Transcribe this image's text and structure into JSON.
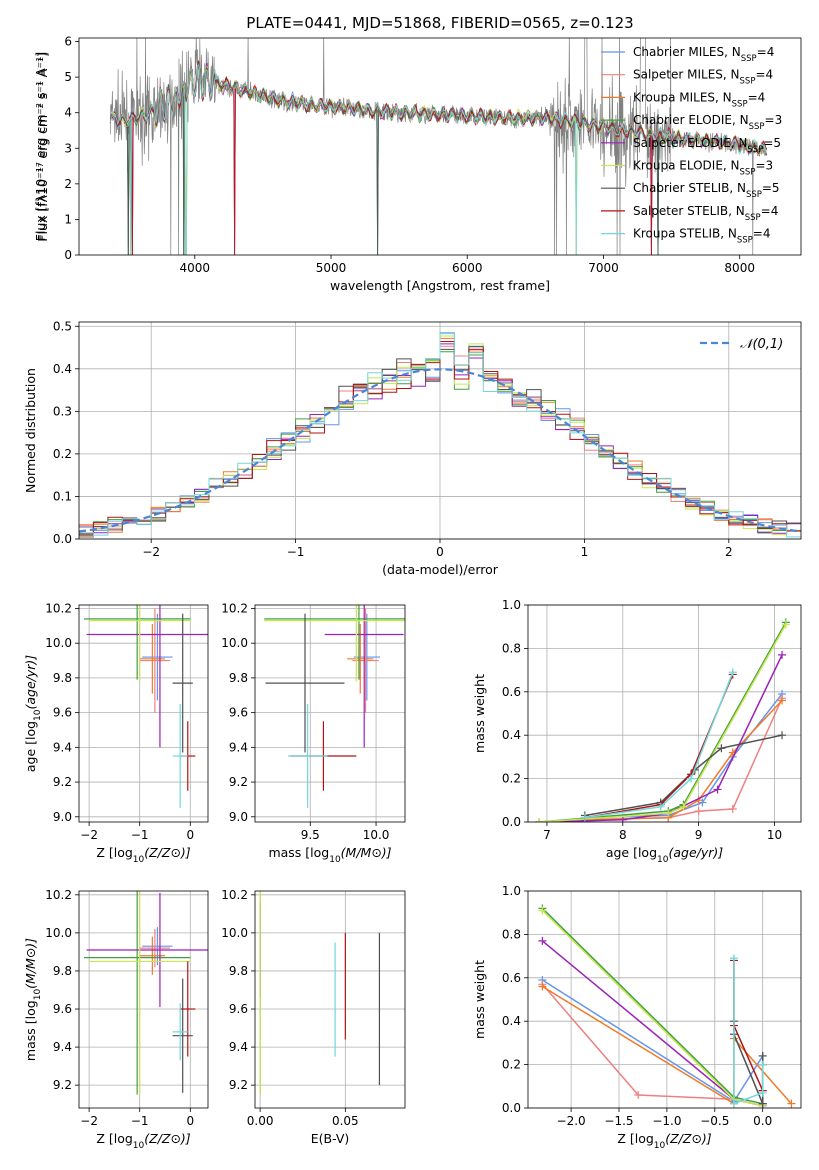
{
  "title": "PLATE=0441, MJD=51868, FIBERID=0565, z=0.123",
  "colors": {
    "Chabrier MILES": "#6495ed",
    "Salpeter MILES": "#f08080",
    "Kroupa MILES": "#f07a28",
    "Chabrier ELODIE": "#40a040",
    "Salpeter ELODIE": "#9a22b8",
    "Kroupa ELODIE": "#c8e650",
    "Chabrier STELIB": "#505050",
    "Salpeter STELIB": "#b01515",
    "Kroupa STELIB": "#70d8dc",
    "spectrum": "#808080",
    "normal": "#4a86d8"
  },
  "chart_data": [
    {
      "type": "line",
      "id": "spectrum",
      "xlabel": "wavelength [Angstrom, rest frame]",
      "ylabel": "Flux [fλ10⁻¹⁷ erg cm⁻² s⁻¹ A⁻¹]",
      "xlim": [
        3150,
        8450
      ],
      "ylim": [
        0,
        6.1
      ],
      "xticks": [
        4000,
        5000,
        6000,
        7000,
        8000
      ],
      "yticks": [
        0,
        1,
        2,
        3,
        4,
        5,
        6
      ],
      "legend_position": "top-right",
      "series": [
        {
          "name": "Chabrier MILES, NSSP=4",
          "legend_text": "Chabrier MILES, N",
          "sub": "SSP",
          "suffix": "=4"
        },
        {
          "name": "Salpeter MILES, NSSP=4",
          "legend_text": "Salpeter MILES, N",
          "sub": "SSP",
          "suffix": "=4"
        },
        {
          "name": "Kroupa MILES, NSSP=4",
          "legend_text": "Kroupa MILES, N",
          "sub": "SSP",
          "suffix": "=4"
        },
        {
          "name": "Chabrier ELODIE, NSSP=3",
          "legend_text": "Chabrier ELODIE, N",
          "sub": "SSP",
          "suffix": "=3"
        },
        {
          "name": "Salpeter ELODIE, NSSP=5",
          "legend_text": "Salpeter ELODIE, N",
          "sub": "SSP",
          "suffix": "=5"
        },
        {
          "name": "Kroupa ELODIE, NSSP=3",
          "legend_text": "Kroupa ELODIE, N",
          "sub": "SSP",
          "suffix": "=3"
        },
        {
          "name": "Chabrier STELIB, NSSP=5",
          "legend_text": "Chabrier STELIB, N",
          "sub": "SSP",
          "suffix": "=5"
        },
        {
          "name": "Salpeter STELIB, NSSP=4",
          "legend_text": "Salpeter STELIB, N",
          "sub": "SSP",
          "suffix": "=4"
        },
        {
          "name": "Kroupa STELIB, NSSP=4",
          "legend_text": "Kroupa STELIB, N",
          "sub": "SSP",
          "suffix": "=4"
        }
      ],
      "continuum_points": [
        [
          3380,
          3.9
        ],
        [
          3500,
          3.75
        ],
        [
          3650,
          3.95
        ],
        [
          3800,
          4.3
        ],
        [
          3900,
          4.5
        ],
        [
          4000,
          4.95
        ],
        [
          4100,
          4.85
        ],
        [
          4300,
          4.7
        ],
        [
          4500,
          4.45
        ],
        [
          4700,
          4.3
        ],
        [
          4900,
          4.2
        ],
        [
          5100,
          4.15
        ],
        [
          5300,
          4.05
        ],
        [
          5500,
          4.0
        ],
        [
          5800,
          3.95
        ],
        [
          6100,
          3.9
        ],
        [
          6300,
          3.85
        ],
        [
          6550,
          3.85
        ],
        [
          6800,
          3.75
        ],
        [
          7000,
          3.6
        ],
        [
          7300,
          3.4
        ],
        [
          7500,
          3.3
        ],
        [
          7800,
          3.2
        ],
        [
          8000,
          3.1
        ],
        [
          8200,
          2.95
        ]
      ],
      "noisy_ranges": [
        [
          3350,
          4150
        ],
        [
          6600,
          7500
        ]
      ],
      "model_drops": [
        3510,
        3530,
        3540,
        3920,
        3935,
        4290,
        5340,
        6800,
        7350,
        7400
      ]
    },
    {
      "type": "step",
      "id": "residuals",
      "xlabel": "(data-model)/error",
      "ylabel": "Normed distribution",
      "xlim": [
        -2.5,
        2.5
      ],
      "ylim": [
        0,
        0.51
      ],
      "xticks": [
        -2,
        -1,
        0,
        1,
        2
      ],
      "yticks": [
        0.0,
        0.1,
        0.2,
        0.3,
        0.4,
        0.5
      ],
      "grid": true,
      "legend": "𝒩(0,1)",
      "legend_position": "top-right",
      "bin_width": 0.1,
      "bins_start": -2.5
    },
    {
      "type": "errorbar",
      "id": "age-vs-Z",
      "xlabel": "Z [log10(Z/Z⊙)]",
      "ylabel": "age  [log10(age/yr)]",
      "xlim": [
        -2.2,
        0.35
      ],
      "ylim": [
        8.97,
        10.22
      ],
      "xticks": [
        -2,
        -1,
        0
      ],
      "yticks": [
        9.0,
        9.2,
        9.4,
        9.6,
        9.8,
        10.0,
        10.2
      ],
      "points": [
        {
          "series": "Chabrier MILES",
          "x": -0.65,
          "xerr": 0.3,
          "y": 9.92,
          "yerr": 0.25
        },
        {
          "series": "Salpeter MILES",
          "x": -0.7,
          "xerr": 0.3,
          "y": 9.9,
          "yerr": 0.3
        },
        {
          "series": "Kroupa MILES",
          "x": -0.75,
          "xerr": 0.25,
          "y": 9.91,
          "yerr": 0.2
        },
        {
          "series": "Chabrier ELODIE",
          "x": -1.05,
          "xerr": 1.05,
          "y": 10.14,
          "yerr": 0.35
        },
        {
          "series": "Salpeter ELODIE",
          "x": -0.6,
          "xerr": 1.45,
          "y": 10.05,
          "yerr": 0.65
        },
        {
          "series": "Kroupa ELODIE",
          "x": -1.0,
          "xerr": 1.0,
          "y": 10.13,
          "yerr": 0.35
        },
        {
          "series": "Chabrier STELIB",
          "x": -0.15,
          "xerr": 0.2,
          "y": 9.77,
          "yerr": 0.4
        },
        {
          "series": "Salpeter STELIB",
          "x": -0.05,
          "xerr": 0.15,
          "y": 9.35,
          "yerr": 0.2
        },
        {
          "series": "Kroupa STELIB",
          "x": -0.2,
          "xerr": 0.15,
          "y": 9.35,
          "yerr": 0.3
        }
      ]
    },
    {
      "type": "errorbar",
      "id": "age-vs-mass",
      "xlabel": "mass [log10(M/M⊙)]",
      "ylabel": "",
      "xlim": [
        9.08,
        10.22
      ],
      "ylim": [
        8.97,
        10.22
      ],
      "xticks": [
        9.5,
        10.0
      ],
      "yticks": [
        9.0,
        9.2,
        9.4,
        9.6,
        9.8,
        10.0,
        10.2
      ],
      "points": [
        {
          "series": "Chabrier MILES",
          "x": 9.93,
          "xerr": 0.1,
          "y": 9.92,
          "yerr": 0.25
        },
        {
          "series": "Salpeter MILES",
          "x": 9.92,
          "xerr": 0.1,
          "y": 9.9,
          "yerr": 0.3
        },
        {
          "series": "Kroupa MILES",
          "x": 9.88,
          "xerr": 0.1,
          "y": 9.91,
          "yerr": 0.2
        },
        {
          "series": "Chabrier ELODIE",
          "x": 9.87,
          "xerr": 0.72,
          "y": 10.14,
          "yerr": 0.35
        },
        {
          "series": "Salpeter ELODIE",
          "x": 9.91,
          "xerr": 0.3,
          "y": 10.05,
          "yerr": 0.65
        },
        {
          "series": "Kroupa ELODIE",
          "x": 9.85,
          "xerr": 0.7,
          "y": 10.13,
          "yerr": 0.35
        },
        {
          "series": "Chabrier STELIB",
          "x": 9.46,
          "xerr": 0.3,
          "y": 9.77,
          "yerr": 0.4
        },
        {
          "series": "Salpeter STELIB",
          "x": 9.6,
          "xerr": 0.25,
          "y": 9.35,
          "yerr": 0.2
        },
        {
          "series": "Kroupa STELIB",
          "x": 9.48,
          "xerr": 0.15,
          "y": 9.35,
          "yerr": 0.3
        }
      ]
    },
    {
      "type": "line",
      "id": "mass-weight-vs-age",
      "xlabel": "age  [log10(age/yr)]",
      "ylabel": "mass weight",
      "xlim": [
        6.75,
        10.35
      ],
      "ylim": [
        0,
        1.0
      ],
      "xticks": [
        7,
        8,
        9,
        10
      ],
      "yticks": [
        0.0,
        0.2,
        0.4,
        0.6,
        0.8,
        1.0
      ],
      "series": [
        {
          "series": "Chabrier MILES",
          "x": [
            7.5,
            8.6,
            9.05,
            9.45,
            10.1
          ],
          "y": [
            0.02,
            0.03,
            0.09,
            0.3,
            0.59
          ]
        },
        {
          "series": "Salpeter MILES",
          "x": [
            7.5,
            8.6,
            9.0,
            9.45,
            10.1
          ],
          "y": [
            0.01,
            0.02,
            0.05,
            0.06,
            0.57
          ]
        },
        {
          "series": "Kroupa MILES",
          "x": [
            7.5,
            8.6,
            9.0,
            9.45,
            10.1
          ],
          "y": [
            0.01,
            0.02,
            0.1,
            0.32,
            0.56
          ]
        },
        {
          "series": "Chabrier ELODIE",
          "x": [
            6.9,
            8.6,
            8.8,
            10.15
          ],
          "y": [
            0.0,
            0.05,
            0.08,
            0.92
          ]
        },
        {
          "series": "Salpeter ELODIE",
          "x": [
            6.9,
            8.0,
            8.6,
            9.25,
            10.1
          ],
          "y": [
            0.0,
            0.01,
            0.04,
            0.15,
            0.77
          ]
        },
        {
          "series": "Kroupa ELODIE",
          "x": [
            6.9,
            8.6,
            8.8,
            10.15
          ],
          "y": [
            0.0,
            0.04,
            0.07,
            0.91
          ]
        },
        {
          "series": "Chabrier STELIB",
          "x": [
            7.5,
            8.5,
            8.95,
            9.3,
            10.1
          ],
          "y": [
            0.03,
            0.09,
            0.24,
            0.34,
            0.4
          ]
        },
        {
          "series": "Salpeter STELIB",
          "x": [
            7.5,
            8.5,
            8.9,
            9.45
          ],
          "y": [
            0.02,
            0.08,
            0.22,
            0.68
          ]
        },
        {
          "series": "Kroupa STELIB",
          "x": [
            7.5,
            8.5,
            8.9,
            9.45
          ],
          "y": [
            0.02,
            0.07,
            0.2,
            0.69
          ]
        }
      ]
    },
    {
      "type": "errorbar",
      "id": "mass-vs-Z",
      "xlabel": "Z [log10(Z/Z⊙)]",
      "ylabel": "mass [log10(M/M⊙)]",
      "xlim": [
        -2.2,
        0.35
      ],
      "ylim": [
        9.08,
        10.22
      ],
      "xticks": [
        -2,
        -1,
        0
      ],
      "yticks": [
        9.2,
        9.4,
        9.6,
        9.8,
        10.0,
        10.2
      ],
      "points": [
        {
          "series": "Chabrier MILES",
          "x": -0.65,
          "xerr": 0.3,
          "y": 9.93,
          "yerr": 0.1
        },
        {
          "series": "Salpeter MILES",
          "x": -0.7,
          "xerr": 0.3,
          "y": 9.92,
          "yerr": 0.1
        },
        {
          "series": "Kroupa MILES",
          "x": -0.75,
          "xerr": 0.25,
          "y": 9.88,
          "yerr": 0.1
        },
        {
          "series": "Chabrier ELODIE",
          "x": -1.05,
          "xerr": 1.05,
          "y": 9.87,
          "yerr": 0.72
        },
        {
          "series": "Salpeter ELODIE",
          "x": -0.6,
          "xerr": 1.45,
          "y": 9.91,
          "yerr": 0.3
        },
        {
          "series": "Kroupa ELODIE",
          "x": -1.0,
          "xerr": 1.0,
          "y": 9.85,
          "yerr": 0.7
        },
        {
          "series": "Chabrier STELIB",
          "x": -0.15,
          "xerr": 0.2,
          "y": 9.46,
          "yerr": 0.3
        },
        {
          "series": "Salpeter STELIB",
          "x": -0.05,
          "xerr": 0.15,
          "y": 9.6,
          "yerr": 0.25
        },
        {
          "series": "Kroupa STELIB",
          "x": -0.2,
          "xerr": 0.15,
          "y": 9.48,
          "yerr": 0.15
        }
      ]
    },
    {
      "type": "errorbar",
      "id": "mass-vs-ebv",
      "xlabel": "E(B-V)",
      "ylabel": "",
      "xlim": [
        -0.003,
        0.085
      ],
      "ylim": [
        9.08,
        10.22
      ],
      "xticks": [
        0.0,
        0.05
      ],
      "yticks": [
        9.2,
        9.4,
        9.6,
        9.8,
        10.0,
        10.2
      ],
      "points": [
        {
          "series": "Chabrier ELODIE",
          "x": 0.0,
          "y": 9.87,
          "yerr": 0.72
        },
        {
          "series": "Salpeter ELODIE",
          "x": 0.0,
          "y": 9.91,
          "yerr": 0.25
        },
        {
          "series": "Kroupa ELODIE",
          "x": 0.0,
          "y": 9.85,
          "yerr": 0.7
        },
        {
          "series": "Kroupa STELIB",
          "x": 0.044,
          "y": 9.65,
          "yerr": 0.3
        },
        {
          "series": "Salpeter STELIB",
          "x": 0.05,
          "y": 9.72,
          "yerr": 0.28
        },
        {
          "series": "Chabrier STELIB",
          "x": 0.07,
          "y": 9.6,
          "yerr": 0.4
        }
      ]
    },
    {
      "type": "line",
      "id": "mass-weight-vs-Z",
      "xlabel": "Z [log10(Z/Z⊙)]",
      "ylabel": "mass weight",
      "xlim": [
        -2.45,
        0.4
      ],
      "ylim": [
        0,
        1.0
      ],
      "xticks": [
        -2.0,
        -1.5,
        -1.0,
        -0.5,
        0.0
      ],
      "yticks": [
        0.0,
        0.2,
        0.4,
        0.6,
        0.8,
        1.0
      ],
      "series": [
        {
          "series": "Chabrier MILES",
          "x": [
            -2.3,
            -0.3,
            0.0,
            0.0
          ],
          "y": [
            0.59,
            0.03,
            0.24,
            0.02
          ]
        },
        {
          "series": "Salpeter MILES",
          "x": [
            -2.3,
            -1.3,
            -0.3,
            0.0
          ],
          "y": [
            0.57,
            0.06,
            0.04,
            0.01
          ]
        },
        {
          "series": "Kroupa MILES",
          "x": [
            -2.3,
            -0.3,
            -0.3,
            0.3
          ],
          "y": [
            0.56,
            0.02,
            0.32,
            0.02
          ]
        },
        {
          "series": "Chabrier ELODIE",
          "x": [
            -2.3,
            -0.3,
            0.0
          ],
          "y": [
            0.92,
            0.05,
            0.02
          ]
        },
        {
          "series": "Salpeter ELODIE",
          "x": [
            -2.3,
            -0.3,
            0.0
          ],
          "y": [
            0.77,
            0.04,
            0.01
          ]
        },
        {
          "series": "Kroupa ELODIE",
          "x": [
            -2.3,
            -0.3,
            0.0
          ],
          "y": [
            0.91,
            0.04,
            0.01
          ]
        },
        {
          "series": "Chabrier STELIB",
          "x": [
            -0.3,
            -0.3,
            0.0,
            0.0
          ],
          "y": [
            0.4,
            0.34,
            0.02,
            0.24
          ]
        },
        {
          "series": "Salpeter STELIB",
          "x": [
            -0.3,
            -0.3,
            0.0,
            0.0
          ],
          "y": [
            0.68,
            0.38,
            0.08,
            0.2
          ]
        },
        {
          "series": "Kroupa STELIB",
          "x": [
            -0.3,
            -0.3,
            0.0,
            0.0
          ],
          "y": [
            0.69,
            0.02,
            0.07,
            0.2
          ]
        }
      ]
    }
  ]
}
